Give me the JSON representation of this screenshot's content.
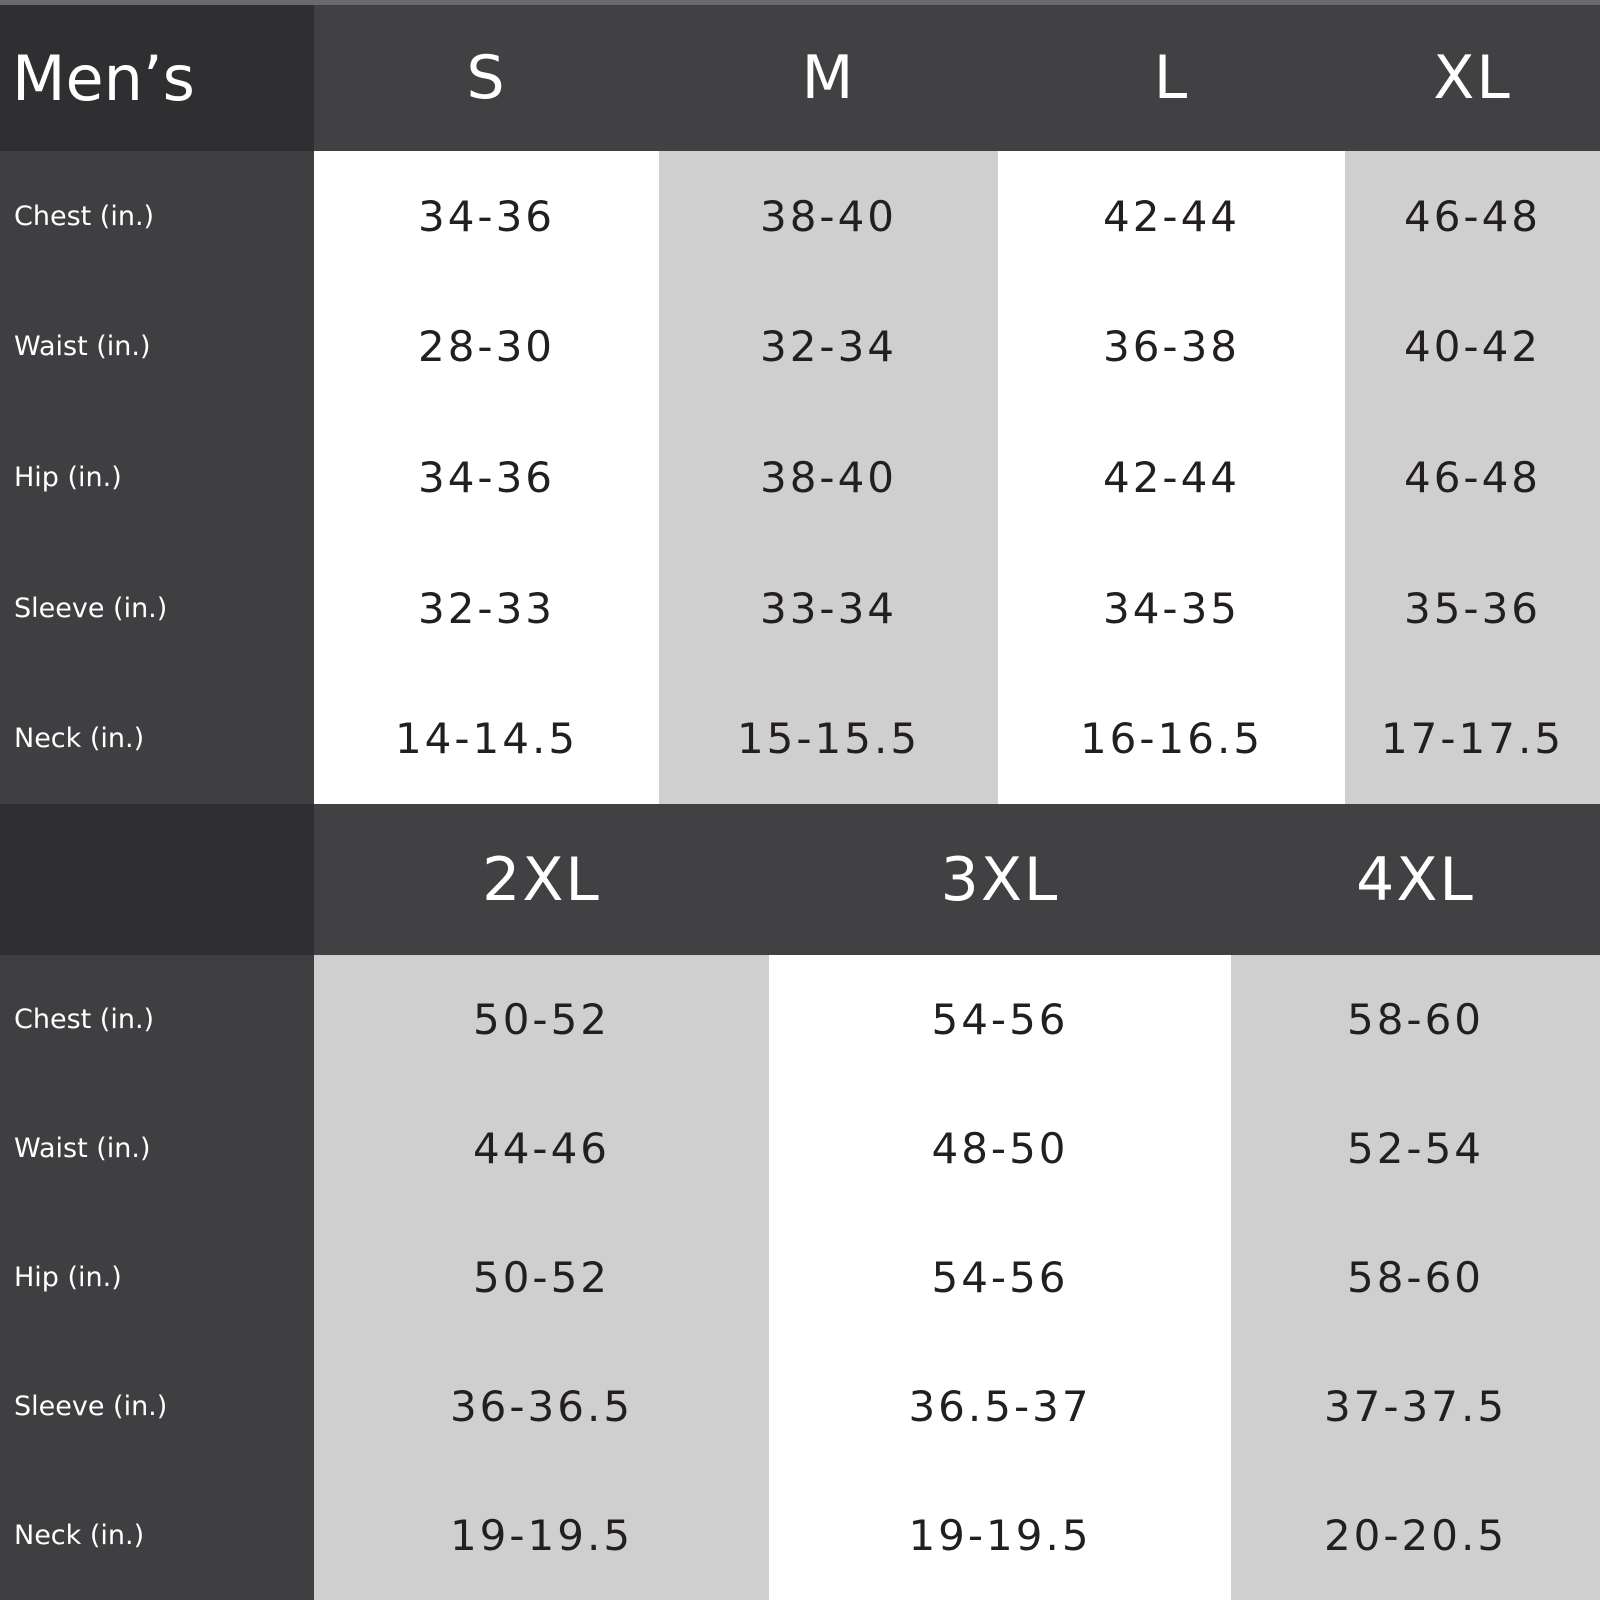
{
  "title": "Men’s",
  "row_labels": [
    "Chest (in.)",
    "Waist (in.)",
    "Hip (in.)",
    "Sleeve (in.)",
    "Neck (in.)"
  ],
  "colors": {
    "header": "#414042",
    "label_column": "#3f3e40",
    "corner": "#2f2e30",
    "cell_white": "#ffffff",
    "cell_gray": "#cfcfcf",
    "text": "#231f20"
  },
  "table1": {
    "sizes": [
      "S",
      "M",
      "L",
      "XL"
    ],
    "values": [
      [
        "34-36",
        "28-30",
        "34-36",
        "32-33",
        "14-14.5"
      ],
      [
        "38-40",
        "32-34",
        "38-40",
        "33-34",
        "15-15.5"
      ],
      [
        "42-44",
        "36-38",
        "42-44",
        "34-35",
        "16-16.5"
      ],
      [
        "46-48",
        "40-42",
        "46-48",
        "35-36",
        "17-17.5"
      ]
    ]
  },
  "table2": {
    "sizes": [
      "2XL",
      "3XL",
      "4XL"
    ],
    "values": [
      [
        "50-52",
        "44-46",
        "50-52",
        "36-36.5",
        "19-19.5"
      ],
      [
        "54-56",
        "48-50",
        "54-56",
        "36.5-37",
        "19-19.5"
      ],
      [
        "58-60",
        "52-54",
        "58-60",
        "37-37.5",
        "20-20.5"
      ]
    ]
  }
}
